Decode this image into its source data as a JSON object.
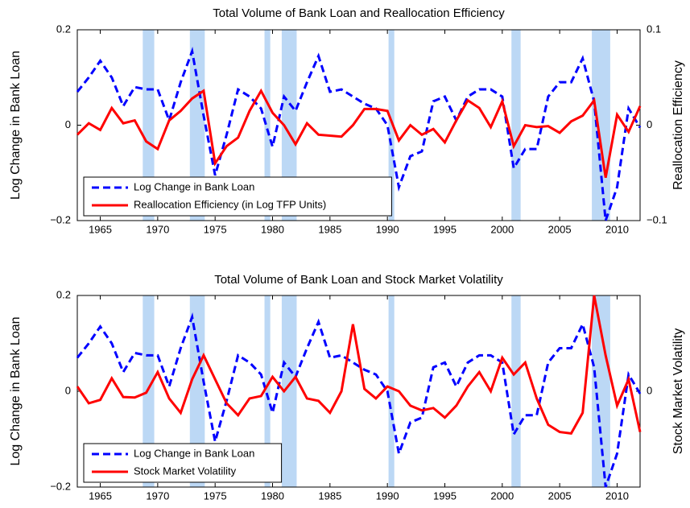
{
  "chart_data": [
    {
      "type": "line",
      "title": "Total Volume of Bank Loan and Reallocation Efficiency",
      "ylabel": "Log Change in Bank Loan",
      "y2label": "Reallocation Efficiency",
      "x": [
        1963,
        1964,
        1965,
        1966,
        1967,
        1968,
        1969,
        1970,
        1971,
        1972,
        1973,
        1974,
        1975,
        1976,
        1977,
        1978,
        1979,
        1980,
        1981,
        1982,
        1983,
        1984,
        1985,
        1986,
        1987,
        1988,
        1989,
        1990,
        1991,
        1992,
        1993,
        1994,
        1995,
        1996,
        1997,
        1998,
        1999,
        2000,
        2001,
        2002,
        2003,
        2004,
        2005,
        2006,
        2007,
        2008,
        2009,
        2010,
        2011,
        2012
      ],
      "xlim": [
        1963,
        2012
      ],
      "xticks": [
        1965,
        1970,
        1975,
        1980,
        1985,
        1990,
        1995,
        2000,
        2005,
        2010
      ],
      "ylim": [
        -0.2,
        0.2
      ],
      "yticks": [
        {
          "value": -0.2,
          "label": "−0.2"
        },
        0,
        0.2
      ],
      "y2lim": [
        -0.1,
        0.1
      ],
      "y2ticks": [
        {
          "value": -0.1,
          "label": "−0.1"
        },
        0,
        0.1
      ],
      "y2tick_color": "#008000",
      "legend": "lower left",
      "shade_color": "#bcd8f5",
      "shaded_regions": [
        [
          1968.7,
          1969.7
        ],
        [
          1972.8,
          1974.1
        ],
        [
          1979.3,
          1979.8
        ],
        [
          1980.8,
          1982.1
        ],
        [
          1990.1,
          1990.6
        ],
        [
          2000.8,
          2001.6
        ],
        [
          2007.8,
          2009.4
        ]
      ],
      "series": [
        {
          "name": "Log Change in Bank Loan",
          "color": "#0000ff",
          "linestyle": "dashed",
          "values": [
            0.07,
            0.1,
            0.135,
            0.1,
            0.04,
            0.08,
            0.075,
            0.075,
            0.01,
            0.09,
            0.155,
            0.02,
            -0.105,
            -0.02,
            0.075,
            0.06,
            0.035,
            -0.045,
            0.06,
            0.03,
            0.09,
            0.145,
            0.07,
            0.075,
            0.06,
            0.045,
            0.035,
            0.0,
            -0.13,
            -0.065,
            -0.055,
            0.05,
            0.06,
            0.01,
            0.06,
            0.075,
            0.075,
            0.06,
            -0.09,
            -0.05,
            -0.05,
            0.06,
            0.09,
            0.09,
            0.14,
            0.05,
            -0.2,
            -0.13,
            0.035,
            -0.005
          ]
        },
        {
          "name": "Reallocation Efficiency (in Log TFP Units)",
          "color": "#ff0000",
          "linestyle": "solid",
          "axis": "y2",
          "values": [
            -0.01,
            0.002,
            -0.005,
            0.018,
            0.002,
            0.005,
            -0.017,
            -0.025,
            0.005,
            0.015,
            0.028,
            0.036,
            -0.04,
            -0.022,
            -0.013,
            0.015,
            0.036,
            0.013,
            0.0,
            -0.02,
            0.002,
            -0.01,
            -0.011,
            -0.012,
            0.0,
            0.017,
            0.017,
            0.015,
            -0.016,
            0.0,
            -0.01,
            -0.004,
            -0.018,
            0.005,
            0.026,
            0.018,
            -0.002,
            0.025,
            -0.022,
            0.0,
            -0.002,
            -0.001,
            -0.008,
            0.004,
            0.01,
            0.026,
            -0.055,
            0.011,
            -0.007,
            0.02
          ]
        }
      ]
    },
    {
      "type": "line",
      "title": "Total Volume of Bank Loan and Stock Market Volatility",
      "ylabel": "Log Change in Bank Loan",
      "y2label": "Stock Market Volatility",
      "x": [
        1963,
        1964,
        1965,
        1966,
        1967,
        1968,
        1969,
        1970,
        1971,
        1972,
        1973,
        1974,
        1975,
        1976,
        1977,
        1978,
        1979,
        1980,
        1981,
        1982,
        1983,
        1984,
        1985,
        1986,
        1987,
        1988,
        1989,
        1990,
        1991,
        1992,
        1993,
        1994,
        1995,
        1996,
        1997,
        1998,
        1999,
        2000,
        2001,
        2002,
        2003,
        2004,
        2005,
        2006,
        2007,
        2008,
        2009,
        2010,
        2011,
        2012
      ],
      "xlim": [
        1963,
        2012
      ],
      "xticks": [
        1965,
        1970,
        1975,
        1980,
        1985,
        1990,
        1995,
        2000,
        2005,
        2010
      ],
      "ylim": [
        -0.2,
        0.2
      ],
      "yticks": [
        {
          "value": -0.2,
          "label": "−0.2"
        },
        0,
        0.2
      ],
      "y2lim": [
        -0.2,
        0.2
      ],
      "y2ticks": [
        0
      ],
      "y2tick_color": "#008000",
      "legend": "lower left",
      "shade_color": "#bcd8f5",
      "shaded_regions": [
        [
          1968.7,
          1969.7
        ],
        [
          1972.8,
          1974.1
        ],
        [
          1979.3,
          1979.8
        ],
        [
          1980.8,
          1982.1
        ],
        [
          1990.1,
          1990.6
        ],
        [
          2000.8,
          2001.6
        ],
        [
          2007.8,
          2009.4
        ]
      ],
      "series": [
        {
          "name": "Log Change in Bank Loan",
          "color": "#0000ff",
          "linestyle": "dashed",
          "values": [
            0.07,
            0.1,
            0.135,
            0.1,
            0.04,
            0.08,
            0.075,
            0.075,
            0.01,
            0.09,
            0.155,
            0.02,
            -0.105,
            -0.02,
            0.075,
            0.06,
            0.035,
            -0.045,
            0.06,
            0.03,
            0.09,
            0.145,
            0.07,
            0.075,
            0.06,
            0.045,
            0.035,
            0.0,
            -0.13,
            -0.065,
            -0.055,
            0.05,
            0.06,
            0.01,
            0.06,
            0.075,
            0.075,
            0.06,
            -0.09,
            -0.05,
            -0.05,
            0.06,
            0.09,
            0.09,
            0.14,
            0.05,
            -0.2,
            -0.13,
            0.035,
            -0.005
          ]
        },
        {
          "name": "Stock Market Volatility",
          "color": "#ff0000",
          "linestyle": "solid",
          "axis": "y2",
          "values": [
            0.01,
            -0.025,
            -0.018,
            0.027,
            -0.012,
            -0.013,
            -0.003,
            0.04,
            -0.015,
            -0.045,
            0.025,
            0.075,
            0.025,
            -0.025,
            -0.05,
            -0.015,
            -0.01,
            0.03,
            0.0,
            0.03,
            -0.015,
            -0.02,
            -0.045,
            0.0,
            0.14,
            0.005,
            -0.015,
            0.01,
            0.0,
            -0.03,
            -0.04,
            -0.035,
            -0.055,
            -0.03,
            0.01,
            0.04,
            0.0,
            0.07,
            0.035,
            0.06,
            -0.015,
            -0.07,
            -0.085,
            -0.088,
            -0.045,
            0.2,
            0.075,
            -0.03,
            0.025,
            -0.085
          ]
        }
      ]
    }
  ]
}
